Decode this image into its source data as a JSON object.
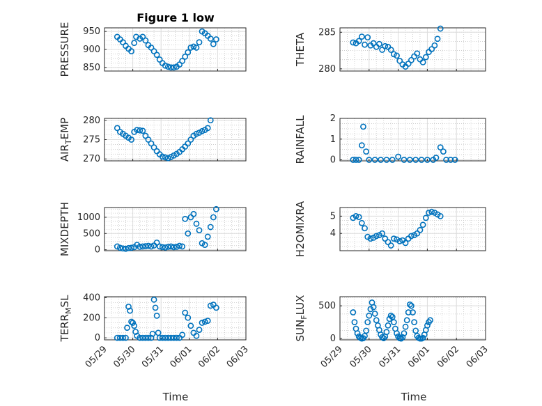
{
  "figure": {
    "title": "Figure 1 low",
    "xlabel": "Time"
  },
  "chart_data": [
    {
      "type": "scatter",
      "ylabel": "PRESSURE",
      "x_ticks": [
        "05/29",
        "05/30",
        "05/31",
        "06/01",
        "06/02",
        "06/03"
      ],
      "show_x_ticks": false,
      "ylim": [
        840,
        960
      ],
      "yticks": [
        850,
        900,
        950
      ],
      "points": [
        [
          0.45,
          935
        ],
        [
          0.55,
          928
        ],
        [
          0.65,
          920
        ],
        [
          0.75,
          910
        ],
        [
          0.85,
          902
        ],
        [
          0.95,
          895
        ],
        [
          1.05,
          918
        ],
        [
          1.12,
          935
        ],
        [
          1.25,
          930
        ],
        [
          1.35,
          935
        ],
        [
          1.45,
          925
        ],
        [
          1.55,
          912
        ],
        [
          1.65,
          905
        ],
        [
          1.75,
          895
        ],
        [
          1.85,
          885
        ],
        [
          1.95,
          872
        ],
        [
          2.05,
          862
        ],
        [
          2.15,
          855
        ],
        [
          2.25,
          852
        ],
        [
          2.35,
          850
        ],
        [
          2.45,
          850
        ],
        [
          2.55,
          852
        ],
        [
          2.65,
          858
        ],
        [
          2.75,
          868
        ],
        [
          2.85,
          880
        ],
        [
          2.95,
          892
        ],
        [
          3.05,
          905
        ],
        [
          3.15,
          908
        ],
        [
          3.25,
          905
        ],
        [
          3.35,
          920
        ],
        [
          3.45,
          950
        ],
        [
          3.55,
          945
        ],
        [
          3.65,
          938
        ],
        [
          3.75,
          930
        ],
        [
          3.85,
          915
        ],
        [
          3.95,
          928
        ]
      ]
    },
    {
      "type": "scatter",
      "ylabel": "THETA",
      "x_ticks": [
        "05/29",
        "05/30",
        "05/31",
        "06/01",
        "06/02",
        "06/03"
      ],
      "show_x_ticks": false,
      "ylim": [
        279.7,
        285.6
      ],
      "yticks": [
        280,
        285
      ],
      "points": [
        [
          0.45,
          283.6
        ],
        [
          0.55,
          283.5
        ],
        [
          0.65,
          283.8
        ],
        [
          0.75,
          284.4
        ],
        [
          0.85,
          283.3
        ],
        [
          0.95,
          284.3
        ],
        [
          1.05,
          283.2
        ],
        [
          1.15,
          283.5
        ],
        [
          1.25,
          283.0
        ],
        [
          1.35,
          283.4
        ],
        [
          1.45,
          282.6
        ],
        [
          1.55,
          283.1
        ],
        [
          1.65,
          283.0
        ],
        [
          1.75,
          282.6
        ],
        [
          1.85,
          282.0
        ],
        [
          1.95,
          281.8
        ],
        [
          2.05,
          281.1
        ],
        [
          2.15,
          280.6
        ],
        [
          2.25,
          280.3
        ],
        [
          2.35,
          280.7
        ],
        [
          2.45,
          281.2
        ],
        [
          2.55,
          281.7
        ],
        [
          2.65,
          282.1
        ],
        [
          2.75,
          281.3
        ],
        [
          2.85,
          280.9
        ],
        [
          2.95,
          281.6
        ],
        [
          3.05,
          282.3
        ],
        [
          3.15,
          282.7
        ],
        [
          3.25,
          283.2
        ],
        [
          3.35,
          284.1
        ],
        [
          3.45,
          285.5
        ]
      ]
    },
    {
      "type": "scatter",
      "ylabel": "AIR_TEMP",
      "ylabel_main": "AIR",
      "ylabel_sub": "T",
      "ylabel_rest": "EMP",
      "x_ticks": [
        "05/29",
        "05/30",
        "05/31",
        "06/01",
        "06/02",
        "06/03"
      ],
      "show_x_ticks": false,
      "ylim": [
        269.5,
        280.5
      ],
      "yticks": [
        270,
        275,
        280
      ],
      "points": [
        [
          0.45,
          278.0
        ],
        [
          0.55,
          277.0
        ],
        [
          0.65,
          276.5
        ],
        [
          0.75,
          276.0
        ],
        [
          0.85,
          275.5
        ],
        [
          0.95,
          275.0
        ],
        [
          1.05,
          277.0
        ],
        [
          1.15,
          277.5
        ],
        [
          1.25,
          277.4
        ],
        [
          1.35,
          277.3
        ],
        [
          1.45,
          276.0
        ],
        [
          1.55,
          275.0
        ],
        [
          1.65,
          274.0
        ],
        [
          1.75,
          273.0
        ],
        [
          1.85,
          272.0
        ],
        [
          1.95,
          271.2
        ],
        [
          2.05,
          270.6
        ],
        [
          2.15,
          270.4
        ],
        [
          2.25,
          270.2
        ],
        [
          2.35,
          270.5
        ],
        [
          2.45,
          270.9
        ],
        [
          2.55,
          271.3
        ],
        [
          2.65,
          271.8
        ],
        [
          2.75,
          272.5
        ],
        [
          2.85,
          273.2
        ],
        [
          2.95,
          274.0
        ],
        [
          3.05,
          275.0
        ],
        [
          3.15,
          276.0
        ],
        [
          3.25,
          276.5
        ],
        [
          3.35,
          276.8
        ],
        [
          3.45,
          277.2
        ],
        [
          3.55,
          277.5
        ],
        [
          3.65,
          278.0
        ],
        [
          3.75,
          280.0
        ]
      ]
    },
    {
      "type": "scatter",
      "ylabel": "RAINFALL",
      "x_ticks": [
        "05/29",
        "05/30",
        "05/31",
        "06/01",
        "06/02",
        "06/03"
      ],
      "show_x_ticks": false,
      "ylim": [
        -0.05,
        2.0
      ],
      "yticks": [
        0,
        1,
        2
      ],
      "points": [
        [
          0.45,
          0
        ],
        [
          0.55,
          0
        ],
        [
          0.65,
          0
        ],
        [
          0.75,
          0.7
        ],
        [
          0.8,
          1.6
        ],
        [
          0.9,
          0.4
        ],
        [
          1.0,
          0
        ],
        [
          1.2,
          0
        ],
        [
          1.4,
          0
        ],
        [
          1.6,
          0
        ],
        [
          1.8,
          0
        ],
        [
          2.0,
          0.15
        ],
        [
          2.2,
          0
        ],
        [
          2.4,
          0
        ],
        [
          2.6,
          0
        ],
        [
          2.8,
          0
        ],
        [
          3.0,
          0
        ],
        [
          3.2,
          0
        ],
        [
          3.3,
          0.1
        ],
        [
          3.45,
          0.6
        ],
        [
          3.55,
          0.4
        ],
        [
          3.65,
          0
        ],
        [
          3.8,
          0
        ],
        [
          3.95,
          0
        ]
      ]
    },
    {
      "type": "scatter",
      "ylabel": "MIXDEPTH",
      "x_ticks": [
        "05/29",
        "05/30",
        "05/31",
        "06/01",
        "06/02",
        "06/03"
      ],
      "show_x_ticks": false,
      "ylim": [
        -30,
        1300
      ],
      "yticks": [
        0,
        500,
        1000
      ],
      "points": [
        [
          0.45,
          100
        ],
        [
          0.55,
          60
        ],
        [
          0.65,
          40
        ],
        [
          0.75,
          30
        ],
        [
          0.85,
          50
        ],
        [
          0.95,
          60
        ],
        [
          1.05,
          80
        ],
        [
          1.15,
          150
        ],
        [
          1.25,
          90
        ],
        [
          1.35,
          100
        ],
        [
          1.45,
          110
        ],
        [
          1.55,
          120
        ],
        [
          1.65,
          100
        ],
        [
          1.75,
          130
        ],
        [
          1.85,
          220
        ],
        [
          1.95,
          100
        ],
        [
          2.05,
          80
        ],
        [
          2.15,
          70
        ],
        [
          2.25,
          90
        ],
        [
          2.35,
          100
        ],
        [
          2.45,
          80
        ],
        [
          2.55,
          90
        ],
        [
          2.65,
          120
        ],
        [
          2.75,
          100
        ],
        [
          2.85,
          950
        ],
        [
          2.95,
          500
        ],
        [
          3.05,
          1000
        ],
        [
          3.15,
          1100
        ],
        [
          3.25,
          800
        ],
        [
          3.35,
          600
        ],
        [
          3.45,
          200
        ],
        [
          3.55,
          150
        ],
        [
          3.65,
          400
        ],
        [
          3.75,
          700
        ],
        [
          3.85,
          1000
        ],
        [
          3.95,
          1250
        ]
      ]
    },
    {
      "type": "scatter",
      "ylabel": "H2OMIXRA",
      "x_ticks": [
        "05/29",
        "05/30",
        "05/31",
        "06/01",
        "06/02",
        "06/03"
      ],
      "show_x_ticks": false,
      "ylim": [
        3.0,
        5.5
      ],
      "yticks": [
        4,
        5
      ],
      "points": [
        [
          0.45,
          4.9
        ],
        [
          0.55,
          5.0
        ],
        [
          0.65,
          4.95
        ],
        [
          0.75,
          4.6
        ],
        [
          0.85,
          4.3
        ],
        [
          0.95,
          3.8
        ],
        [
          1.05,
          3.7
        ],
        [
          1.15,
          3.75
        ],
        [
          1.25,
          3.85
        ],
        [
          1.35,
          3.9
        ],
        [
          1.45,
          4.0
        ],
        [
          1.55,
          3.7
        ],
        [
          1.65,
          3.5
        ],
        [
          1.75,
          3.3
        ],
        [
          1.85,
          3.7
        ],
        [
          1.95,
          3.65
        ],
        [
          2.05,
          3.55
        ],
        [
          2.15,
          3.6
        ],
        [
          2.25,
          3.45
        ],
        [
          2.35,
          3.7
        ],
        [
          2.45,
          3.85
        ],
        [
          2.55,
          3.9
        ],
        [
          2.65,
          4.0
        ],
        [
          2.75,
          4.2
        ],
        [
          2.85,
          4.5
        ],
        [
          2.95,
          4.9
        ],
        [
          3.05,
          5.2
        ],
        [
          3.15,
          5.25
        ],
        [
          3.25,
          5.2
        ],
        [
          3.35,
          5.1
        ],
        [
          3.45,
          5.0
        ]
      ]
    },
    {
      "type": "scatter",
      "ylabel": "TERR_MSL",
      "ylabel_main": "TERR",
      "ylabel_sub": "M",
      "ylabel_rest": "SL",
      "x_ticks": [
        "05/29",
        "05/30",
        "05/31",
        "06/01",
        "06/02",
        "06/03"
      ],
      "show_x_ticks": true,
      "ylim": [
        -20,
        410
      ],
      "yticks": [
        0,
        200,
        400
      ],
      "points": [
        [
          0.45,
          0
        ],
        [
          0.55,
          0
        ],
        [
          0.65,
          0
        ],
        [
          0.75,
          0
        ],
        [
          0.8,
          100
        ],
        [
          0.85,
          310
        ],
        [
          0.9,
          270
        ],
        [
          0.95,
          160
        ],
        [
          1.0,
          150
        ],
        [
          1.05,
          120
        ],
        [
          1.1,
          60
        ],
        [
          1.15,
          20
        ],
        [
          1.25,
          0
        ],
        [
          1.35,
          0
        ],
        [
          1.45,
          0
        ],
        [
          1.55,
          0
        ],
        [
          1.65,
          0
        ],
        [
          1.7,
          40
        ],
        [
          1.75,
          380
        ],
        [
          1.8,
          300
        ],
        [
          1.85,
          220
        ],
        [
          1.9,
          50
        ],
        [
          1.95,
          0
        ],
        [
          2.05,
          0
        ],
        [
          2.15,
          0
        ],
        [
          2.25,
          0
        ],
        [
          2.35,
          0
        ],
        [
          2.45,
          0
        ],
        [
          2.55,
          0
        ],
        [
          2.65,
          0
        ],
        [
          2.75,
          30
        ],
        [
          2.85,
          250
        ],
        [
          2.95,
          200
        ],
        [
          3.05,
          120
        ],
        [
          3.15,
          50
        ],
        [
          3.25,
          20
        ],
        [
          3.35,
          80
        ],
        [
          3.45,
          150
        ],
        [
          3.55,
          160
        ],
        [
          3.65,
          170
        ],
        [
          3.75,
          320
        ],
        [
          3.85,
          330
        ],
        [
          3.95,
          300
        ]
      ]
    },
    {
      "type": "scatter",
      "ylabel": "SUN_FLUX",
      "ylabel_main": "SUN",
      "ylabel_sub": "F",
      "ylabel_rest": "LUX",
      "x_ticks": [
        "05/29",
        "05/30",
        "05/31",
        "06/01",
        "06/02",
        "06/03"
      ],
      "show_x_ticks": true,
      "ylim": [
        -20,
        640
      ],
      "yticks": [
        0,
        500
      ],
      "points": [
        [
          0.45,
          400
        ],
        [
          0.5,
          250
        ],
        [
          0.55,
          150
        ],
        [
          0.6,
          80
        ],
        [
          0.65,
          30
        ],
        [
          0.7,
          10
        ],
        [
          0.75,
          0
        ],
        [
          0.8,
          5
        ],
        [
          0.85,
          40
        ],
        [
          0.9,
          120
        ],
        [
          0.95,
          250
        ],
        [
          1.0,
          350
        ],
        [
          1.05,
          450
        ],
        [
          1.1,
          550
        ],
        [
          1.15,
          480
        ],
        [
          1.2,
          380
        ],
        [
          1.25,
          280
        ],
        [
          1.3,
          200
        ],
        [
          1.35,
          130
        ],
        [
          1.4,
          60
        ],
        [
          1.45,
          20
        ],
        [
          1.5,
          5
        ],
        [
          1.55,
          30
        ],
        [
          1.6,
          100
        ],
        [
          1.65,
          200
        ],
        [
          1.7,
          300
        ],
        [
          1.75,
          350
        ],
        [
          1.8,
          330
        ],
        [
          1.85,
          250
        ],
        [
          1.9,
          150
        ],
        [
          1.95,
          80
        ],
        [
          2.0,
          30
        ],
        [
          2.05,
          5
        ],
        [
          2.1,
          0
        ],
        [
          2.15,
          20
        ],
        [
          2.2,
          80
        ],
        [
          2.25,
          180
        ],
        [
          2.3,
          280
        ],
        [
          2.35,
          400
        ],
        [
          2.4,
          520
        ],
        [
          2.45,
          500
        ],
        [
          2.5,
          400
        ],
        [
          2.55,
          250
        ],
        [
          2.6,
          120
        ],
        [
          2.65,
          40
        ],
        [
          2.7,
          10
        ],
        [
          2.75,
          0
        ],
        [
          2.8,
          0
        ],
        [
          2.85,
          10
        ],
        [
          2.9,
          60
        ],
        [
          2.95,
          130
        ],
        [
          3.0,
          200
        ],
        [
          3.05,
          250
        ],
        [
          3.1,
          280
        ]
      ]
    }
  ]
}
